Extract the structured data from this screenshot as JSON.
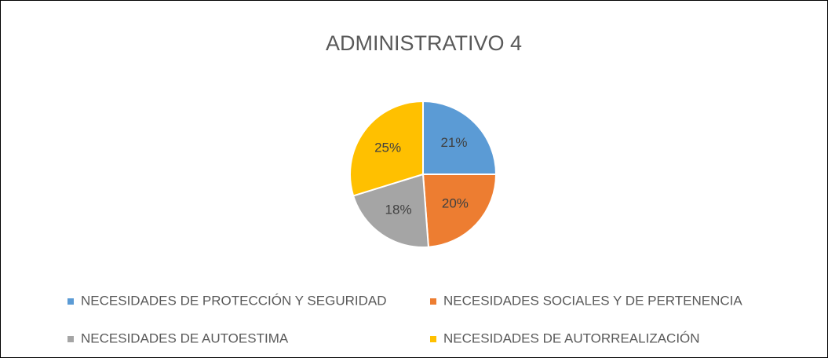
{
  "chart_data": {
    "type": "pie",
    "title": "ADMINISTRATIVO 4",
    "categories": [
      "NECESIDADES DE PROTECCIÓN Y SEGURIDAD",
      "NECESIDADES SOCIALES Y DE PERTENENCIA",
      "NECESIDADES DE AUTOESTIMA",
      "NECESIDADES DE AUTORREALIZACIÓN"
    ],
    "values": [
      21,
      20,
      18,
      25
    ],
    "value_labels": [
      "21%",
      "20%",
      "18%",
      "25%"
    ],
    "colors": [
      "#5b9bd5",
      "#ed7d31",
      "#a5a5a5",
      "#ffc000"
    ],
    "legend": "bottom"
  }
}
